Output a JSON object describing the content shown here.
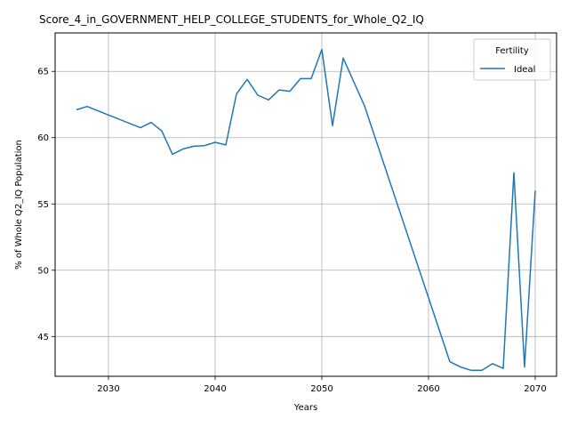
{
  "chart_data": {
    "type": "line",
    "title": "Score_4_in_GOVERNMENT_HELP_COLLEGE_STUDENTS_for_Whole_Q2_IQ",
    "xlabel": "Years",
    "ylabel": "% of Whole Q2_IQ Population",
    "xlim": [
      2025,
      2072
    ],
    "ylim": [
      42.0,
      67.9
    ],
    "xticks": [
      2030,
      2040,
      2050,
      2060,
      2070
    ],
    "yticks": [
      45,
      50,
      55,
      60,
      65
    ],
    "grid": true,
    "legend": {
      "title": "Fertility",
      "position": "top-right"
    },
    "series": [
      {
        "name": "Ideal",
        "color": "#1f77b4",
        "x": [
          2027,
          2028,
          2033,
          2034,
          2035,
          2036,
          2037,
          2038,
          2039,
          2040,
          2041,
          2042,
          2043,
          2044,
          2045,
          2046,
          2047,
          2048,
          2049,
          2050,
          2051,
          2052,
          2054,
          2062,
          2063,
          2064,
          2065,
          2066,
          2067,
          2068,
          2069,
          2070
        ],
        "values": [
          62.1,
          62.35,
          60.75,
          61.15,
          60.5,
          58.75,
          59.15,
          59.35,
          59.4,
          59.65,
          59.45,
          63.3,
          64.4,
          63.2,
          62.85,
          63.6,
          63.5,
          64.45,
          64.45,
          66.65,
          60.9,
          66.0,
          62.4,
          43.1,
          42.7,
          42.45,
          42.45,
          42.95,
          42.6,
          57.35,
          42.7,
          56.0
        ]
      }
    ]
  }
}
